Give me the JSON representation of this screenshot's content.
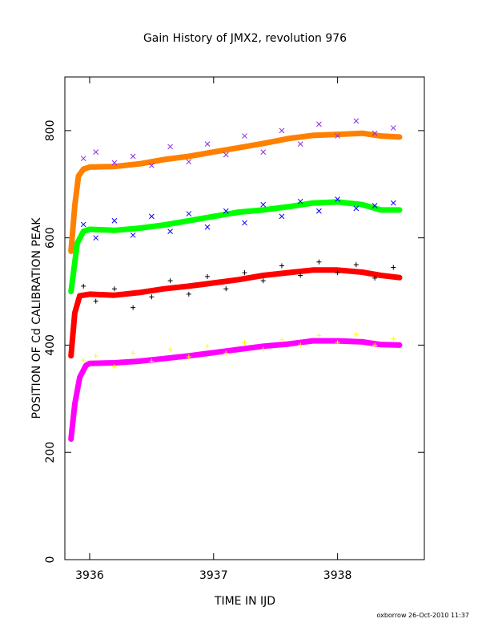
{
  "chart_data": {
    "type": "scatter",
    "title": "Gain History of JMX2, revolution 976",
    "xlabel": "TIME IN IJD",
    "ylabel": "POSITION OF Cd CALIBRATION PEAK",
    "xlim": [
      3935.8,
      3938.7
    ],
    "ylim": [
      0,
      900
    ],
    "xticks": [
      3936,
      3937,
      3938
    ],
    "yticks": [
      0,
      200,
      400,
      600,
      800
    ],
    "grid": false,
    "series": [
      {
        "color": "#ff8000",
        "marker": "line",
        "x": [
          3935.85,
          3935.88,
          3935.91,
          3935.95,
          3936.0,
          3936.2,
          3936.4,
          3936.6,
          3936.8,
          3937.0,
          3937.2,
          3937.4,
          3937.6,
          3937.8,
          3938.0,
          3938.2,
          3938.35,
          3938.5
        ],
        "y": [
          575,
          660,
          715,
          728,
          732,
          733,
          738,
          746,
          752,
          760,
          768,
          776,
          785,
          791,
          793,
          795,
          790,
          788
        ]
      },
      {
        "color": "#8a2be2",
        "marker": "x",
        "x": [
          3935.95,
          3936.05,
          3936.2,
          3936.35,
          3936.5,
          3936.65,
          3936.8,
          3936.95,
          3937.1,
          3937.25,
          3937.4,
          3937.55,
          3937.7,
          3937.85,
          3938.0,
          3938.15,
          3938.3,
          3938.45
        ],
        "y": [
          748,
          760,
          740,
          752,
          735,
          770,
          742,
          775,
          755,
          790,
          760,
          800,
          775,
          812,
          790,
          818,
          795,
          805
        ]
      },
      {
        "color": "#00ff00",
        "marker": "line",
        "x": [
          3935.85,
          3935.9,
          3935.95,
          3936.0,
          3936.2,
          3936.4,
          3936.6,
          3936.8,
          3937.0,
          3937.2,
          3937.4,
          3937.6,
          3937.8,
          3938.0,
          3938.2,
          3938.35,
          3938.5
        ],
        "y": [
          500,
          590,
          612,
          616,
          614,
          618,
          624,
          632,
          640,
          648,
          652,
          658,
          665,
          667,
          662,
          652,
          652
        ]
      },
      {
        "color": "#0000ff",
        "marker": "x",
        "x": [
          3935.95,
          3936.05,
          3936.2,
          3936.35,
          3936.5,
          3936.65,
          3936.8,
          3936.95,
          3937.1,
          3937.25,
          3937.4,
          3937.55,
          3937.7,
          3937.85,
          3938.0,
          3938.15,
          3938.3,
          3938.45
        ],
        "y": [
          625,
          600,
          632,
          605,
          640,
          612,
          645,
          620,
          650,
          628,
          662,
          640,
          668,
          650,
          672,
          655,
          660,
          665
        ]
      },
      {
        "color": "#ff0000",
        "marker": "line",
        "x": [
          3935.85,
          3935.88,
          3935.92,
          3936.0,
          3936.2,
          3936.4,
          3936.6,
          3936.8,
          3937.0,
          3937.2,
          3937.4,
          3937.6,
          3937.8,
          3938.0,
          3938.2,
          3938.35,
          3938.5
        ],
        "y": [
          380,
          460,
          492,
          495,
          493,
          498,
          505,
          510,
          516,
          522,
          530,
          535,
          540,
          540,
          536,
          530,
          526
        ]
      },
      {
        "color": "#000000",
        "marker": "+",
        "x": [
          3935.95,
          3936.05,
          3936.2,
          3936.35,
          3936.5,
          3936.65,
          3936.8,
          3936.95,
          3937.1,
          3937.25,
          3937.4,
          3937.55,
          3937.7,
          3937.85,
          3938.0,
          3938.15,
          3938.3,
          3938.45
        ],
        "y": [
          510,
          482,
          505,
          470,
          490,
          520,
          495,
          528,
          505,
          535,
          520,
          548,
          530,
          555,
          535,
          550,
          525,
          545
        ]
      },
      {
        "color": "#ff00ff",
        "marker": "line",
        "x": [
          3935.85,
          3935.88,
          3935.92,
          3935.97,
          3936.0,
          3936.2,
          3936.4,
          3936.6,
          3936.8,
          3937.0,
          3937.2,
          3937.4,
          3937.6,
          3937.8,
          3938.0,
          3938.2,
          3938.35,
          3938.5
        ],
        "y": [
          225,
          290,
          340,
          362,
          366,
          367,
          370,
          375,
          380,
          386,
          392,
          398,
          402,
          408,
          408,
          406,
          401,
          400
        ]
      },
      {
        "color": "#ffff00",
        "marker": "+",
        "x": [
          3935.95,
          3936.05,
          3936.2,
          3936.35,
          3936.5,
          3936.65,
          3936.8,
          3936.95,
          3937.1,
          3937.25,
          3937.4,
          3937.55,
          3937.7,
          3937.85,
          3938.0,
          3938.15,
          3938.3,
          3938.45
        ],
        "y": [
          372,
          380,
          360,
          385,
          370,
          392,
          378,
          398,
          385,
          405,
          392,
          410,
          400,
          418,
          405,
          420,
          400,
          412
        ]
      }
    ]
  },
  "footer": "oxborrow 26-Oct-2010 11:37"
}
